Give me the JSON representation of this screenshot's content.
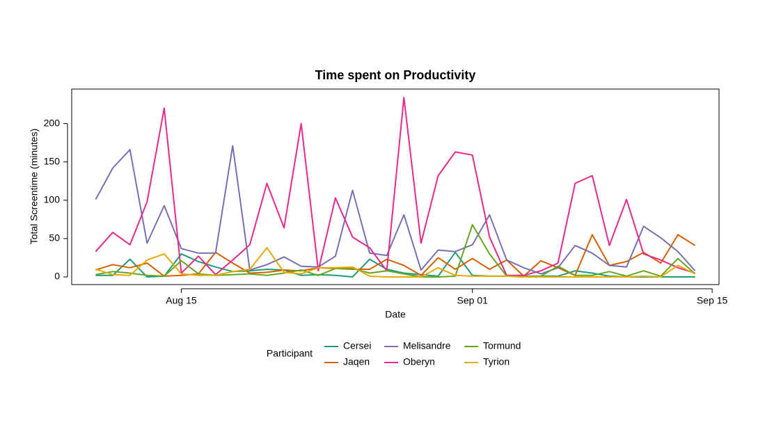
{
  "chart_data": {
    "type": "line",
    "title": "Time spent on Productivity",
    "x_label": "Date",
    "y_label": "Total Screentime (minutes)",
    "legend_title": "Participant",
    "legend_position": "bottom",
    "x": [
      "Aug 10",
      "Aug 11",
      "Aug 12",
      "Aug 13",
      "Aug 14",
      "Aug 15",
      "Aug 16",
      "Aug 17",
      "Aug 18",
      "Aug 19",
      "Aug 20",
      "Aug 21",
      "Aug 22",
      "Aug 23",
      "Aug 24",
      "Aug 25",
      "Aug 26",
      "Aug 27",
      "Aug 28",
      "Aug 29",
      "Aug 30",
      "Aug 31",
      "Sep 01",
      "Sep 02",
      "Sep 03",
      "Sep 04",
      "Sep 05",
      "Sep 06",
      "Sep 07",
      "Sep 08",
      "Sep 09",
      "Sep 10",
      "Sep 11",
      "Sep 12",
      "Sep 13",
      "Sep 14"
    ],
    "xlim": [
      "Aug 10",
      "Sep 14"
    ],
    "xticks": [
      "Aug 15",
      "Sep 01",
      "Sep 15"
    ],
    "ylim": [
      -10,
      245
    ],
    "yticks": [
      0,
      50,
      100,
      150,
      200
    ],
    "series": [
      {
        "name": "Cersei",
        "color": "#1b9e77",
        "values": [
          2,
          2,
          23,
          0,
          1,
          30,
          20,
          13,
          7,
          8,
          10,
          9,
          2,
          3,
          2,
          0,
          23,
          10,
          5,
          3,
          1,
          32,
          2,
          1,
          1,
          1,
          1,
          1,
          8,
          5,
          1,
          0,
          0,
          0,
          0,
          0
        ]
      },
      {
        "name": "Jaqen",
        "color": "#d95f02",
        "values": [
          9,
          16,
          12,
          18,
          1,
          2,
          4,
          32,
          18,
          5,
          6,
          9,
          8,
          12,
          11,
          10,
          10,
          23,
          15,
          2,
          25,
          10,
          24,
          10,
          22,
          1,
          21,
          12,
          2,
          55,
          15,
          20,
          32,
          18,
          55,
          41
        ]
      },
      {
        "name": "Melisandre",
        "color": "#7570b3",
        "values": [
          101,
          142,
          166,
          44,
          93,
          37,
          31,
          31,
          171,
          9,
          16,
          26,
          14,
          13,
          27,
          113,
          31,
          28,
          81,
          9,
          35,
          33,
          42,
          81,
          22,
          12,
          4,
          12,
          41,
          31,
          15,
          13,
          66,
          51,
          33,
          8
        ]
      },
      {
        "name": "Oberyn",
        "color": "#e7298a",
        "values": [
          33,
          58,
          42,
          98,
          220,
          5,
          27,
          3,
          22,
          42,
          122,
          64,
          200,
          8,
          103,
          52,
          38,
          8,
          234,
          44,
          132,
          163,
          159,
          52,
          2,
          2,
          8,
          18,
          122,
          132,
          41,
          101,
          30,
          22,
          12,
          5
        ]
      },
      {
        "name": "Tormund",
        "color": "#66a61e",
        "values": [
          3,
          7,
          5,
          2,
          1,
          21,
          4,
          2,
          3,
          4,
          2,
          5,
          9,
          2,
          11,
          11,
          5,
          8,
          4,
          0,
          0,
          1,
          68,
          30,
          1,
          0,
          1,
          14,
          2,
          2,
          7,
          1,
          8,
          1,
          24,
          4
        ]
      },
      {
        "name": "Tyrion",
        "color": "#e6ab02",
        "values": [
          10,
          3,
          2,
          22,
          30,
          4,
          2,
          2,
          7,
          10,
          38,
          6,
          4,
          12,
          12,
          13,
          1,
          0,
          0,
          0,
          12,
          2,
          1,
          1,
          1,
          0,
          0,
          0,
          0,
          0,
          0,
          0,
          1,
          0,
          15,
          4
        ]
      }
    ]
  }
}
